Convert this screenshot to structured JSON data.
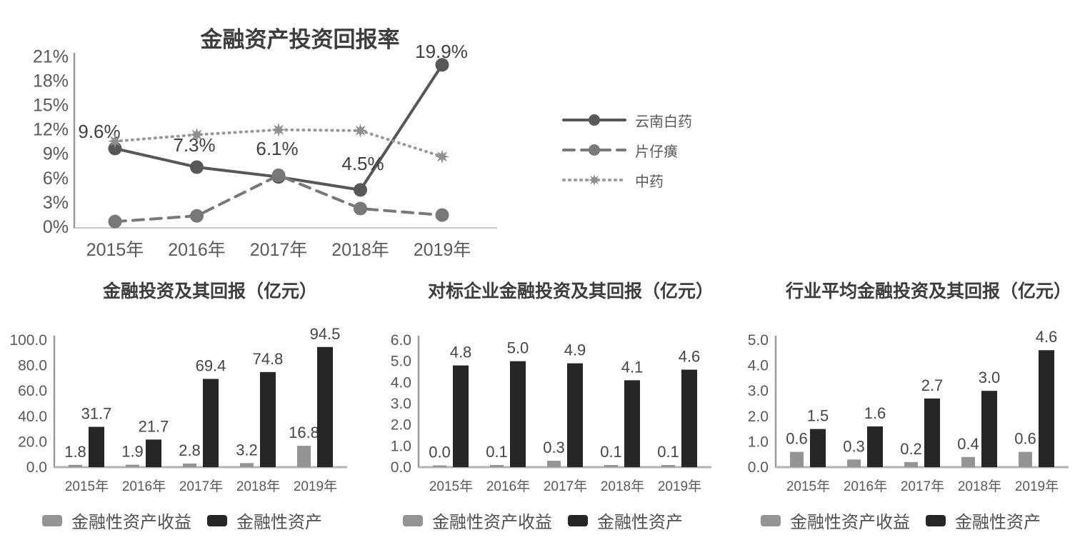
{
  "appearance": {
    "background": "#ffffff",
    "axis_color": "#9a9a9a",
    "baseline_color": "#c6c6c6",
    "tick_label_color": "#595959",
    "title_color": "#3d3d3d",
    "value_label_color": "#454545",
    "bar_gray": "#949494",
    "bar_black": "#262626"
  },
  "chart_data": [
    {
      "type": "line",
      "title": "金融资产投资回报率",
      "x": [
        "2015年",
        "2016年",
        "2017年",
        "2018年",
        "2019年"
      ],
      "ylim": [
        0,
        21
      ],
      "y_ticks": [
        "0%",
        "3%",
        "6%",
        "9%",
        "12%",
        "15%",
        "18%",
        "21%"
      ],
      "grid": false,
      "legend_position": "right",
      "series": [
        {
          "name": "云南白药",
          "values": [
            9.6,
            7.3,
            6.1,
            4.5,
            19.9
          ],
          "data_labels": [
            "9.6%",
            "7.3%",
            "6.1%",
            "4.5%",
            "19.9%"
          ],
          "line_style": "solid",
          "marker": "circle",
          "color": "#575757"
        },
        {
          "name": "片仔癀",
          "values": [
            0.6,
            1.3,
            6.3,
            2.2,
            1.4
          ],
          "line_style": "dashed",
          "marker": "circle",
          "color": "#787878"
        },
        {
          "name": "中药",
          "values": [
            10.5,
            11.3,
            11.9,
            11.8,
            8.6
          ],
          "line_style": "dotted",
          "marker": "star",
          "color": "#989898"
        }
      ]
    },
    {
      "type": "bar",
      "title": "金融投资及其回报（亿元）",
      "categories": [
        "2015年",
        "2016年",
        "2017年",
        "2018年",
        "2019年"
      ],
      "ylim": [
        0,
        100
      ],
      "y_ticks": [
        "0.0",
        "20.0",
        "40.0",
        "60.0",
        "80.0",
        "100.0"
      ],
      "grid": false,
      "legend_position": "bottom",
      "series": [
        {
          "name": "金融性资产收益",
          "color": "#949494",
          "values": [
            1.8,
            1.9,
            2.8,
            3.2,
            16.8
          ],
          "data_labels": [
            "1.8",
            "1.9",
            "2.8",
            "3.2",
            "16.8"
          ]
        },
        {
          "name": "金融性资产",
          "color": "#262626",
          "values": [
            31.7,
            21.7,
            69.4,
            74.8,
            94.5
          ],
          "data_labels": [
            "31.7",
            "21.7",
            "69.4",
            "74.8",
            "94.5"
          ]
        }
      ]
    },
    {
      "type": "bar",
      "title": "对标企业金融投资及其回报（亿元）",
      "categories": [
        "2015年",
        "2016年",
        "2017年",
        "2018年",
        "2019年"
      ],
      "ylim": [
        0,
        6
      ],
      "y_ticks": [
        "0.0",
        "1.0",
        "2.0",
        "3.0",
        "4.0",
        "5.0",
        "6.0"
      ],
      "grid": false,
      "legend_position": "bottom",
      "series": [
        {
          "name": "金融性资产收益",
          "color": "#949494",
          "values": [
            0.0,
            0.1,
            0.3,
            0.1,
            0.1
          ],
          "data_labels": [
            "0.0",
            "0.1",
            "0.3",
            "0.1",
            "0.1"
          ]
        },
        {
          "name": "金融性资产",
          "color": "#262626",
          "values": [
            4.8,
            5.0,
            4.9,
            4.1,
            4.6
          ],
          "data_labels": [
            "4.8",
            "5.0",
            "4.9",
            "4.1",
            "4.6"
          ]
        }
      ]
    },
    {
      "type": "bar",
      "title": "行业平均金融投资及其回报（亿元）",
      "categories": [
        "2015年",
        "2016年",
        "2017年",
        "2018年",
        "2019年"
      ],
      "ylim": [
        0,
        5
      ],
      "y_ticks": [
        "0.0",
        "1.0",
        "2.0",
        "3.0",
        "4.0",
        "5.0"
      ],
      "grid": false,
      "legend_position": "bottom",
      "series": [
        {
          "name": "金融性资产收益",
          "color": "#949494",
          "values": [
            0.6,
            0.3,
            0.2,
            0.4,
            0.6
          ],
          "data_labels": [
            "0.6",
            "0.3",
            "0.2",
            "0.4",
            "0.6"
          ]
        },
        {
          "name": "金融性资产",
          "color": "#262626",
          "values": [
            1.5,
            1.6,
            2.7,
            3.0,
            4.6
          ],
          "data_labels": [
            "1.5",
            "1.6",
            "2.7",
            "3.0",
            "4.6"
          ]
        }
      ]
    }
  ]
}
